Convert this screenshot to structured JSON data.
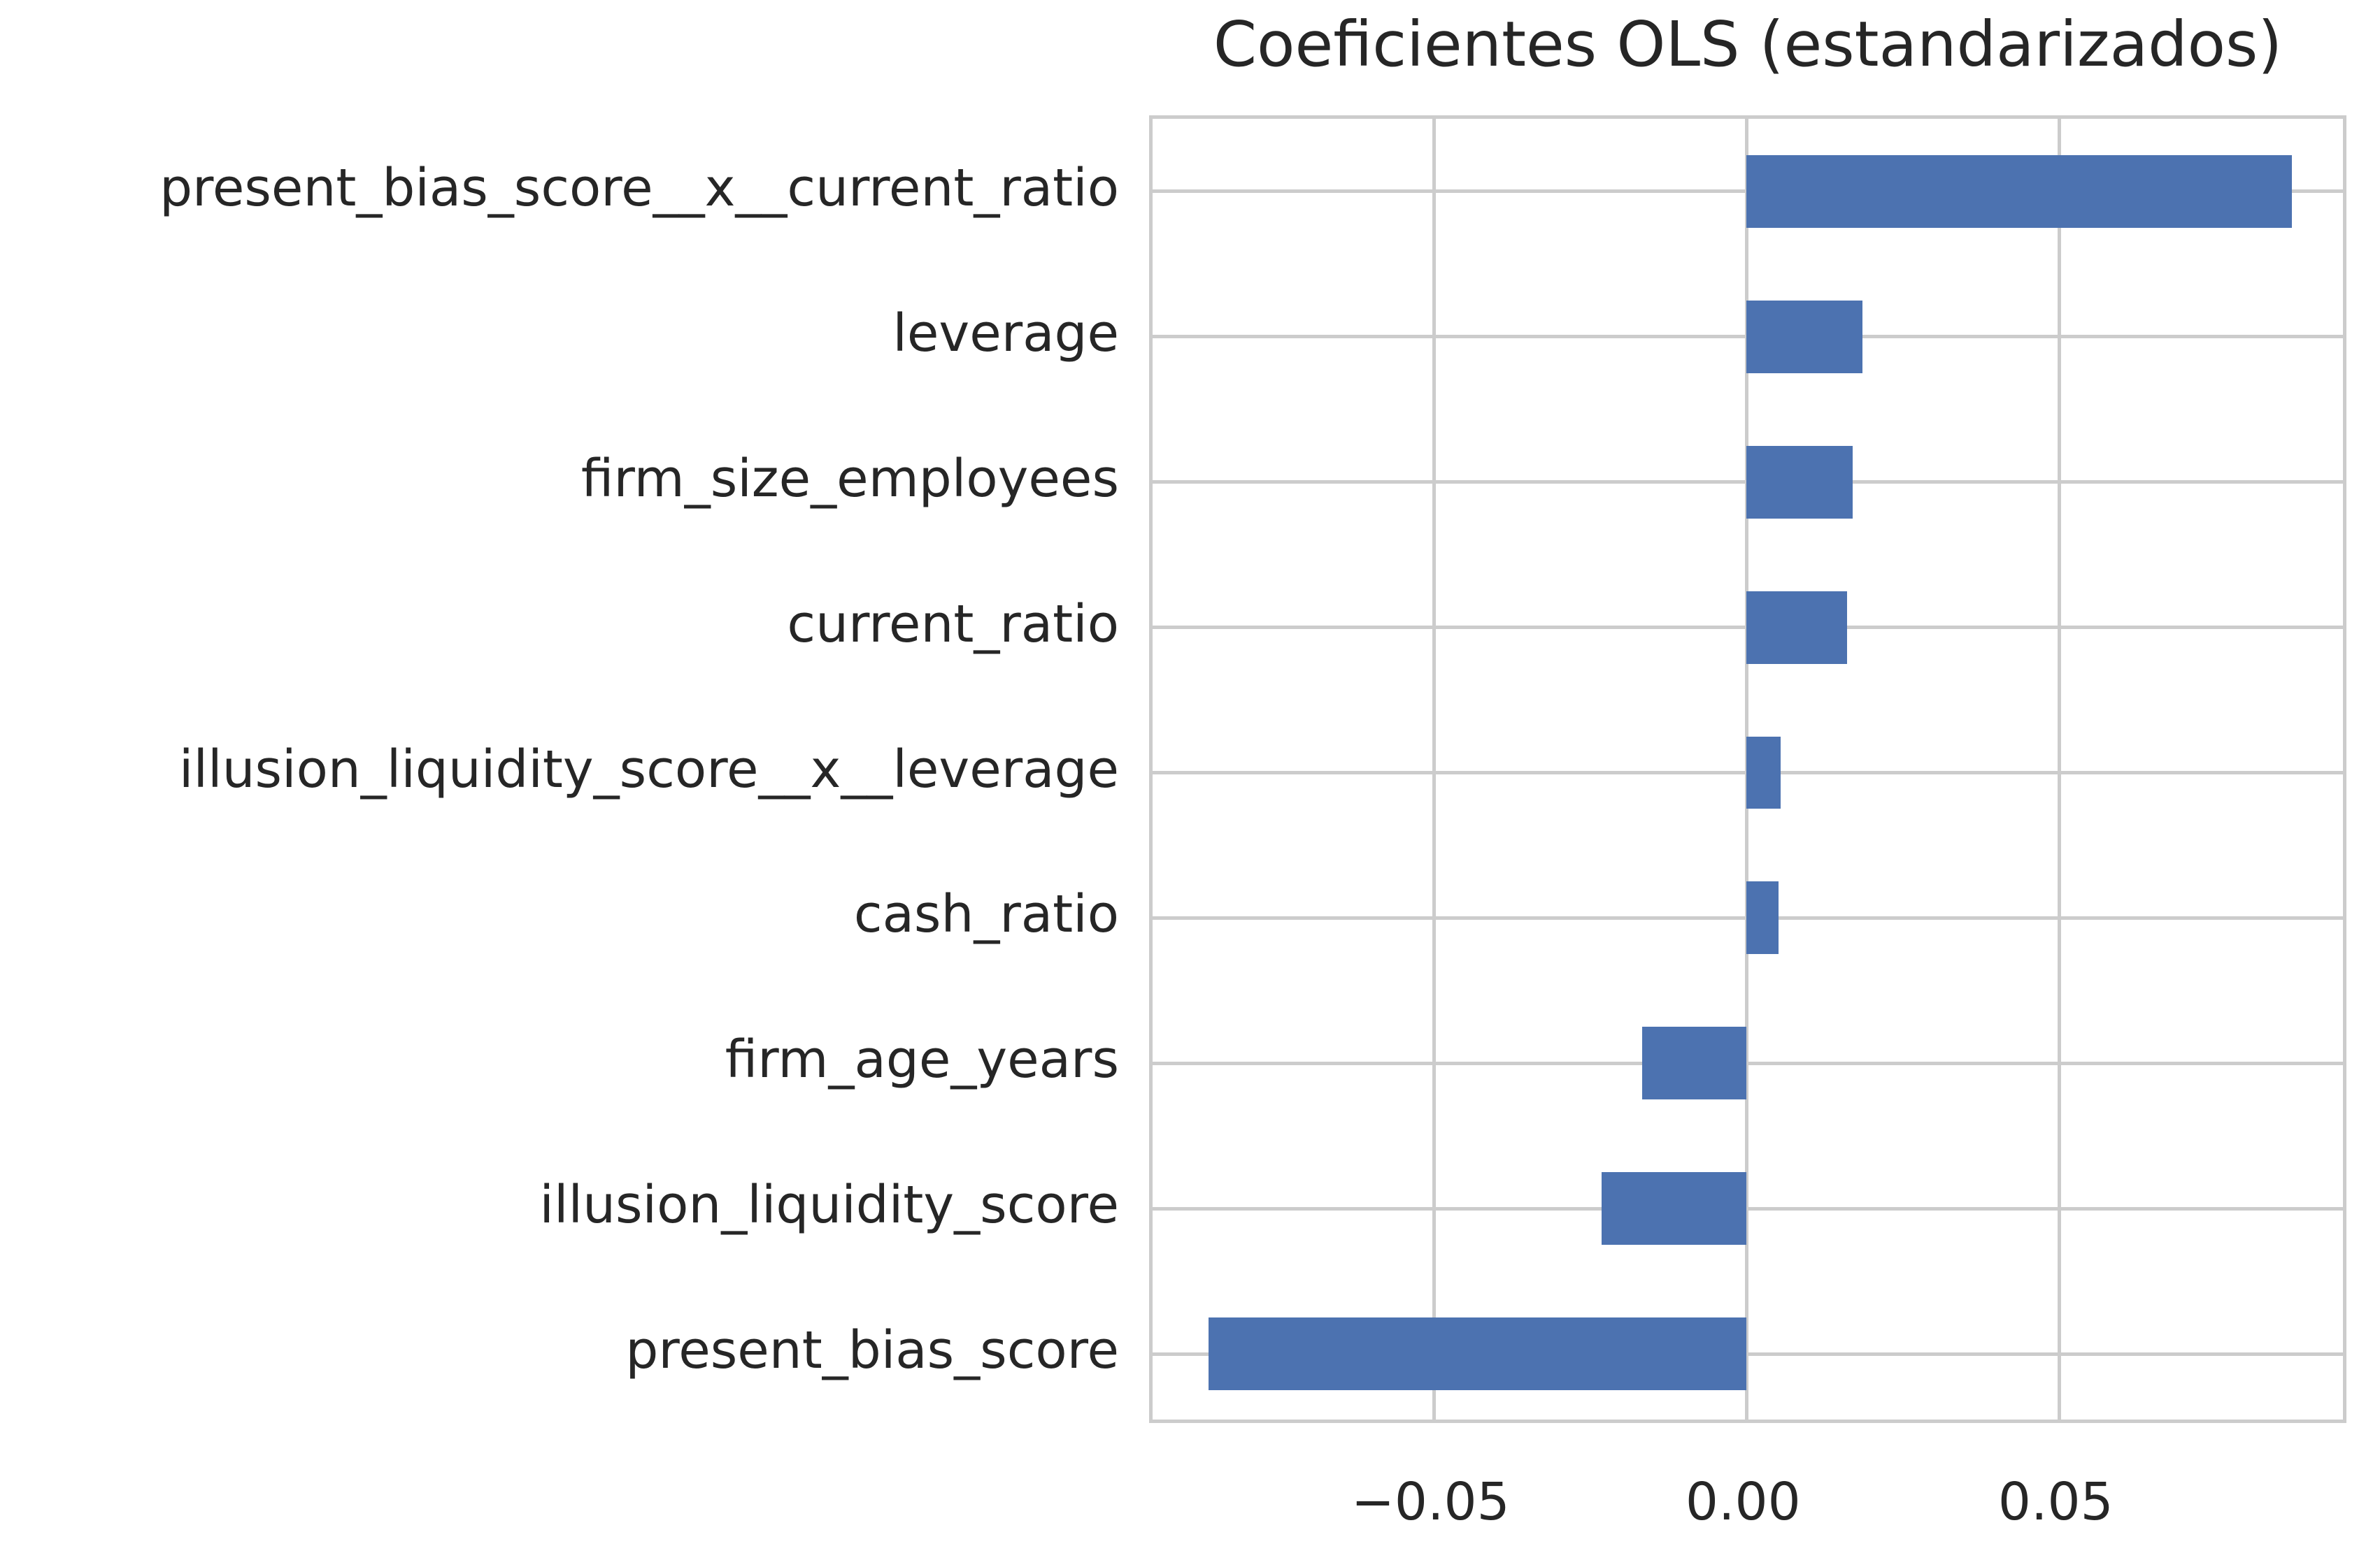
{
  "title": "Coeficientes OLS (estandarizados)",
  "colors": {
    "bar": "#4C72B0",
    "grid": "#cccccc",
    "spine": "#cccccc",
    "text": "#262626"
  },
  "chart_data": {
    "type": "bar",
    "orientation": "horizontal",
    "title": "Coeficientes OLS (estandarizados)",
    "categories": [
      "present_bias_score__x__current_ratio",
      "leverage",
      "firm_size_employees",
      "current_ratio",
      "illusion_liquidity_score__x__leverage",
      "cash_ratio",
      "firm_age_years",
      "illusion_liquidity_score",
      "present_bias_score"
    ],
    "values": [
      0.0872,
      0.0185,
      0.017,
      0.0161,
      0.0054,
      0.0051,
      -0.0167,
      -0.0232,
      -0.0861
    ],
    "xlabel": "",
    "ylabel": "",
    "xticks": [
      -0.05,
      0.0,
      0.05
    ],
    "xtick_labels": [
      "−0.05",
      "0.00",
      "0.05"
    ],
    "xlim": [
      -0.095,
      0.0965
    ],
    "grid": true,
    "legend_position": "none",
    "bar_height_fraction": 0.5
  }
}
